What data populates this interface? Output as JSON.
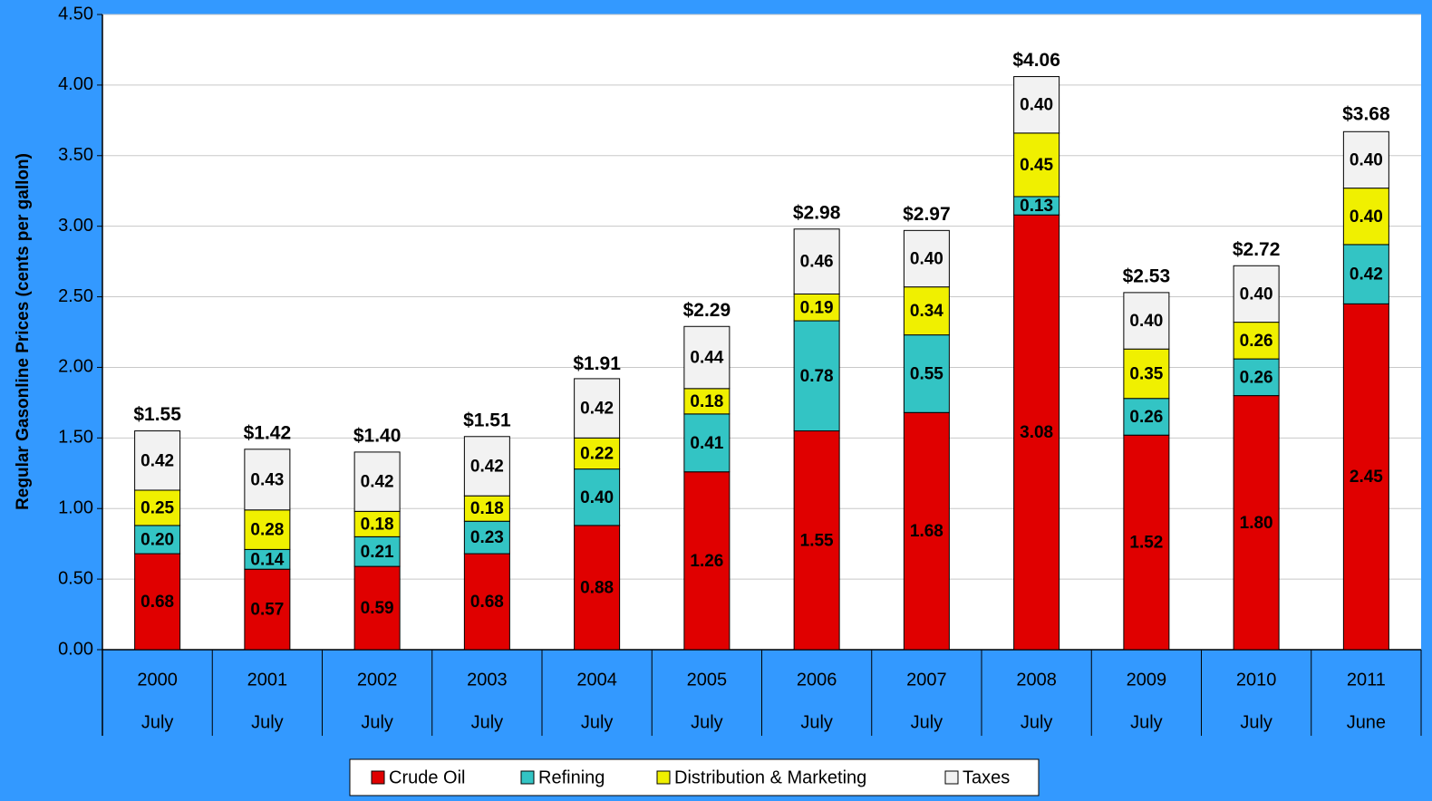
{
  "chart_data": {
    "type": "stacked-bar",
    "y_label": "Regular Gasonline Prices (cents per gallon)",
    "categories": [
      "2000",
      "2001",
      "2002",
      "2003",
      "2004",
      "2005",
      "2006",
      "2007",
      "2008",
      "2009",
      "2010",
      "2011"
    ],
    "subcategories": [
      "July",
      "July",
      "July",
      "July",
      "July",
      "July",
      "July",
      "July",
      "July",
      "July",
      "July",
      "June"
    ],
    "series": [
      {
        "name": "Crude Oil",
        "color": "#e00000",
        "values": [
          0.68,
          0.57,
          0.59,
          0.68,
          0.88,
          1.26,
          1.55,
          1.68,
          3.08,
          1.52,
          1.8,
          2.45
        ],
        "value_labels": [
          "0.68",
          "0.57",
          "0.59",
          "0.68",
          "0.88",
          "1.26",
          "1.55",
          "1.68",
          "3.08",
          "1.52",
          "1.80",
          "2.45"
        ]
      },
      {
        "name": "Refining",
        "color": "#33c4c4",
        "values": [
          0.2,
          0.14,
          0.21,
          0.23,
          0.4,
          0.41,
          0.78,
          0.55,
          0.13,
          0.26,
          0.26,
          0.42
        ],
        "value_labels": [
          "0.20",
          "0.14",
          "0.21",
          "0.23",
          "0.40",
          "0.41",
          "0.78",
          "0.55",
          "0.13",
          "0.26",
          "0.26",
          "0.42"
        ]
      },
      {
        "name": "Distribution & Marketing",
        "color": "#f0f000",
        "values": [
          0.25,
          0.28,
          0.18,
          0.18,
          0.22,
          0.18,
          0.19,
          0.34,
          0.45,
          0.35,
          0.26,
          0.4
        ],
        "value_labels": [
          "0.25",
          "0.28",
          "0.18",
          "0.18",
          "0.22",
          "0.18",
          "0.19",
          "0.34",
          "0.45",
          "0.35",
          "0.26",
          "0.40"
        ]
      },
      {
        "name": "Taxes",
        "color": "#f2f2f2",
        "values": [
          0.42,
          0.43,
          0.42,
          0.42,
          0.42,
          0.44,
          0.46,
          0.4,
          0.4,
          0.4,
          0.4,
          0.4
        ],
        "value_labels": [
          "0.42",
          "0.43",
          "0.42",
          "0.42",
          "0.42",
          "0.44",
          "0.46",
          "0.40",
          "0.40",
          "0.40",
          "0.40",
          "0.40"
        ]
      }
    ],
    "totals": {
      "values": [
        1.55,
        1.42,
        1.4,
        1.51,
        1.91,
        2.29,
        2.98,
        2.97,
        4.06,
        2.53,
        2.72,
        3.68
      ],
      "value_labels": [
        "$1.55",
        "$1.42",
        "$1.40",
        "$1.51",
        "$1.91",
        "$2.29",
        "$2.98",
        "$2.97",
        "$4.06",
        "$2.53",
        "$2.72",
        "$3.68"
      ]
    },
    "ylim": [
      0,
      4.5
    ],
    "yticks": [
      {
        "value": 0,
        "label": "0.00"
      },
      {
        "value": 0.5,
        "label": "0.50"
      },
      {
        "value": 1,
        "label": "1.00"
      },
      {
        "value": 1.5,
        "label": "1.50"
      },
      {
        "value": 2,
        "label": "2.00"
      },
      {
        "value": 2.5,
        "label": "2.50"
      },
      {
        "value": 3,
        "label": "3.00"
      },
      {
        "value": 3.5,
        "label": "3.50"
      },
      {
        "value": 4,
        "label": "4.00"
      },
      {
        "value": 4.5,
        "label": "4.50"
      }
    ],
    "grid": true,
    "legend": "bottom"
  }
}
